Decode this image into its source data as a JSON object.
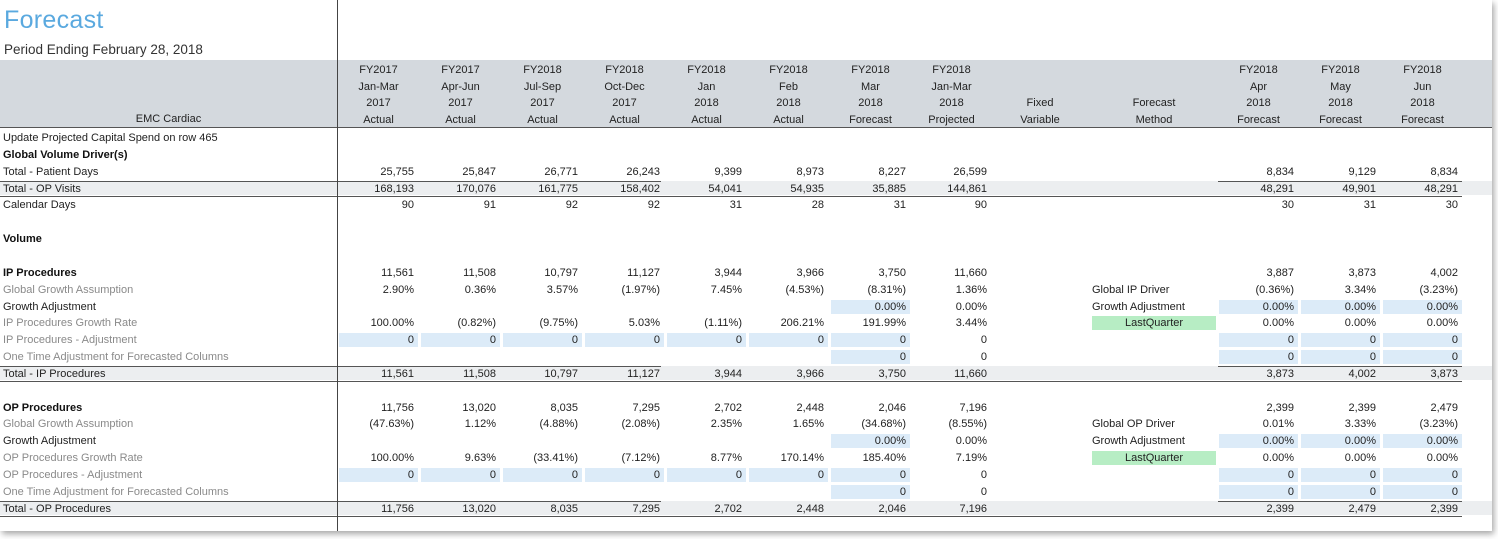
{
  "title": "Forecast",
  "subtitle": "Period Ending February 28, 2018",
  "header": {
    "entity": "EMC Cardiac",
    "fixed_variable": [
      "Fixed",
      "Variable"
    ],
    "forecast_method": [
      "Forecast",
      "Method"
    ],
    "columns": [
      [
        "FY2017",
        "Jan-Mar",
        "2017",
        "Actual"
      ],
      [
        "FY2017",
        "Apr-Jun",
        "2017",
        "Actual"
      ],
      [
        "FY2018",
        "Jul-Sep",
        "2017",
        "Actual"
      ],
      [
        "FY2018",
        "Oct-Dec",
        "2017",
        "Actual"
      ],
      [
        "FY2018",
        "Jan",
        "2018",
        "Actual"
      ],
      [
        "FY2018",
        "Feb",
        "2018",
        "Actual"
      ],
      [
        "FY2018",
        "Mar",
        "2018",
        "Forecast"
      ],
      [
        "FY2018",
        "Jan-Mar",
        "2018",
        "Projected"
      ],
      [
        "FY2018",
        "Apr",
        "2018",
        "Forecast"
      ],
      [
        "FY2018",
        "May",
        "2018",
        "Forecast"
      ],
      [
        "FY2018",
        "Jun",
        "2018",
        "Forecast"
      ]
    ]
  },
  "rows": [
    {
      "label": "Update Projected Capital Spend on row 465",
      "style": "normal",
      "values": [],
      "method": ""
    },
    {
      "label": "Global Volume Driver(s)",
      "style": "bold",
      "values": [],
      "method": ""
    },
    {
      "label": "Total - Patient Days",
      "style": "normal",
      "values": [
        "25,755",
        "25,847",
        "26,771",
        "26,243",
        "9,399",
        "8,973",
        "8,227",
        "26,599",
        "8,834",
        "9,129",
        "8,834"
      ],
      "method": ""
    },
    {
      "label": "Total - OP Visits",
      "style": "normal",
      "values": [
        "168,193",
        "170,076",
        "161,775",
        "158,402",
        "54,041",
        "54,935",
        "35,885",
        "144,861",
        "48,291",
        "49,901",
        "48,291"
      ],
      "method": ""
    },
    {
      "label": "Calendar Days",
      "style": "normal",
      "values": [
        "90",
        "91",
        "92",
        "92",
        "31",
        "28",
        "31",
        "90",
        "30",
        "31",
        "30"
      ],
      "method": ""
    },
    {
      "label": "",
      "style": "normal",
      "values": [],
      "method": ""
    },
    {
      "label": "Volume",
      "style": "bold",
      "values": [],
      "method": ""
    },
    {
      "label": "",
      "style": "normal",
      "values": [],
      "method": ""
    },
    {
      "label": "IP Procedures",
      "style": "bold",
      "values": [
        "11,561",
        "11,508",
        "10,797",
        "11,127",
        "3,944",
        "3,966",
        "3,750",
        "11,660",
        "3,887",
        "3,873",
        "4,002"
      ],
      "method": ""
    },
    {
      "label": "Global Growth Assumption",
      "style": "gray",
      "values": [
        "2.90%",
        "0.36%",
        "3.57%",
        "(1.97%)",
        "7.45%",
        "(4.53%)",
        "(8.31%)",
        "1.36%",
        "(0.36%)",
        "3.34%",
        "(3.23%)"
      ],
      "method": "Global IP Driver"
    },
    {
      "label": "Growth Adjustment",
      "style": "normal",
      "values": [
        "",
        "",
        "",
        "",
        "",
        "",
        "0.00%",
        "0.00%",
        "0.00%",
        "0.00%",
        "0.00%"
      ],
      "method": "Growth Adjustment"
    },
    {
      "label": "IP Procedures Growth Rate",
      "style": "gray",
      "values": [
        "100.00%",
        "(0.82%)",
        "(9.75%)",
        "5.03%",
        "(1.11%)",
        "206.21%",
        "191.99%",
        "3.44%",
        "0.00%",
        "0.00%",
        "0.00%"
      ],
      "method": "LastQuarter"
    },
    {
      "label": "IP Procedures - Adjustment",
      "style": "gray",
      "values": [
        "0",
        "0",
        "0",
        "0",
        "0",
        "0",
        "0",
        "0",
        "0",
        "0",
        "0"
      ],
      "method": ""
    },
    {
      "label": "One Time Adjustment for Forecasted Columns",
      "style": "gray",
      "values": [
        "",
        "",
        "",
        "",
        "",
        "",
        "0",
        "0",
        "0",
        "0",
        "0"
      ],
      "method": ""
    },
    {
      "label": "Total - IP Procedures",
      "style": "normal",
      "values": [
        "11,561",
        "11,508",
        "10,797",
        "11,127",
        "3,944",
        "3,966",
        "3,750",
        "11,660",
        "3,873",
        "4,002",
        "3,873"
      ],
      "method": ""
    },
    {
      "label": "",
      "style": "normal",
      "values": [],
      "method": ""
    },
    {
      "label": "OP Procedures",
      "style": "bold",
      "values": [
        "11,756",
        "13,020",
        "8,035",
        "7,295",
        "2,702",
        "2,448",
        "2,046",
        "7,196",
        "2,399",
        "2,399",
        "2,479"
      ],
      "method": ""
    },
    {
      "label": "Global Growth Assumption",
      "style": "gray",
      "values": [
        "(47.63%)",
        "1.12%",
        "(4.88%)",
        "(2.08%)",
        "2.35%",
        "1.65%",
        "(34.68%)",
        "(8.55%)",
        "0.01%",
        "3.33%",
        "(3.23%)"
      ],
      "method": "Global OP Driver"
    },
    {
      "label": "Growth Adjustment",
      "style": "normal",
      "values": [
        "",
        "",
        "",
        "",
        "",
        "",
        "0.00%",
        "0.00%",
        "0.00%",
        "0.00%",
        "0.00%"
      ],
      "method": "Growth Adjustment"
    },
    {
      "label": "OP Procedures Growth Rate",
      "style": "gray",
      "values": [
        "100.00%",
        "9.63%",
        "(33.41%)",
        "(7.12%)",
        "8.77%",
        "170.14%",
        "185.40%",
        "7.19%",
        "0.00%",
        "0.00%",
        "0.00%"
      ],
      "method": "LastQuarter"
    },
    {
      "label": "OP Procedures - Adjustment",
      "style": "gray",
      "values": [
        "0",
        "0",
        "0",
        "0",
        "0",
        "0",
        "0",
        "0",
        "0",
        "0",
        "0"
      ],
      "method": ""
    },
    {
      "label": "One Time Adjustment for Forecasted Columns",
      "style": "gray",
      "values": [
        "",
        "",
        "",
        "",
        "",
        "",
        "0",
        "0",
        "0",
        "0",
        "0"
      ],
      "method": ""
    },
    {
      "label": "Total - OP Procedures",
      "style": "normal",
      "values": [
        "11,756",
        "13,020",
        "8,035",
        "7,295",
        "2,702",
        "2,448",
        "2,046",
        "7,196",
        "2,399",
        "2,479",
        "2,399"
      ],
      "method": ""
    }
  ],
  "colors": {
    "title": "#5aa9df",
    "header_band": "#d4d9de",
    "input_cell": "#dcebf8",
    "method_highlight": "#b7edc4",
    "total_band": "#eceef0"
  }
}
